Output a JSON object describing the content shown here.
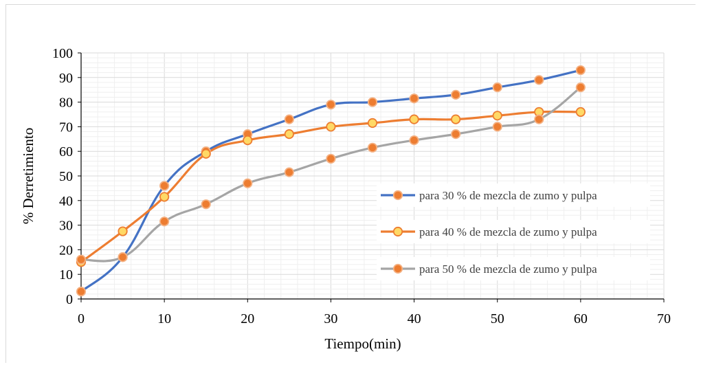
{
  "chart_data": {
    "type": "line",
    "xlabel": "Tiempo(min)",
    "ylabel": "%  Derretimiento",
    "xlim": [
      0,
      70
    ],
    "ylim": [
      0,
      100
    ],
    "x_ticks": [
      0,
      10,
      20,
      30,
      40,
      50,
      60,
      70
    ],
    "y_ticks": [
      0,
      10,
      20,
      30,
      40,
      50,
      60,
      70,
      80,
      90,
      100
    ],
    "grid": true,
    "legend_position": "right",
    "series": [
      {
        "name": "para 30 % de mezcla de zumo y pulpa",
        "line_color": "#4472C4",
        "marker_fill": "#ED7D31",
        "marker_edge": "#F4B183",
        "x": [
          0,
          5,
          10,
          15,
          20,
          25,
          30,
          35,
          40,
          45,
          50,
          55,
          60
        ],
        "y": [
          3,
          17,
          46,
          60,
          67,
          73,
          79,
          80,
          81.5,
          83,
          86,
          89,
          93
        ]
      },
      {
        "name": "para 40 % de mezcla de zumo y pulpa",
        "line_color": "#ED7D31",
        "marker_fill": "#FFD966",
        "marker_edge": "#ED7D31",
        "x": [
          0,
          5,
          10,
          15,
          20,
          25,
          30,
          35,
          40,
          45,
          50,
          55,
          60
        ],
        "y": [
          15,
          27.5,
          41.5,
          59,
          64.5,
          67,
          70,
          71.5,
          73,
          73,
          74.5,
          76,
          76
        ]
      },
      {
        "name": "para 50 % de mezcla de zumo y pulpa",
        "line_color": "#A5A5A5",
        "marker_fill": "#ED7D31",
        "marker_edge": "#F4B183",
        "x": [
          0,
          5,
          10,
          15,
          20,
          25,
          30,
          35,
          40,
          45,
          50,
          55,
          60
        ],
        "y": [
          16,
          17,
          31.5,
          38.5,
          47,
          51.5,
          57,
          61.5,
          64.5,
          67,
          70,
          73,
          86
        ]
      }
    ]
  }
}
